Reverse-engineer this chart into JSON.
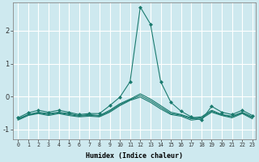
{
  "xlabel": "Humidex (Indice chaleur)",
  "bg_color": "#cee9ef",
  "grid_color": "#ffffff",
  "line_color": "#1a7a6e",
  "xlim": [
    -0.5,
    23.3
  ],
  "ylim": [
    -1.3,
    2.85
  ],
  "yticks": [
    -1,
    0,
    1,
    2
  ],
  "xticks": [
    0,
    1,
    2,
    3,
    4,
    5,
    6,
    7,
    8,
    9,
    10,
    11,
    12,
    13,
    14,
    15,
    16,
    17,
    18,
    19,
    20,
    21,
    22,
    23
  ],
  "series": [
    {
      "x": [
        0,
        1,
        2,
        3,
        4,
        5,
        6,
        7,
        8,
        9,
        10,
        11,
        12,
        13,
        14,
        15,
        16,
        17,
        18,
        19,
        20,
        21,
        22,
        23
      ],
      "y": [
        -0.65,
        -0.5,
        -0.42,
        -0.48,
        -0.42,
        -0.48,
        -0.55,
        -0.52,
        -0.52,
        -0.28,
        -0.02,
        0.45,
        2.72,
        2.2,
        0.45,
        -0.18,
        -0.45,
        -0.62,
        -0.72,
        -0.3,
        -0.48,
        -0.55,
        -0.42,
        -0.58
      ],
      "marker": "D",
      "markersize": 2.0
    },
    {
      "x": [
        0,
        1,
        2,
        3,
        4,
        5,
        6,
        7,
        8,
        9,
        10,
        11,
        12,
        13,
        14,
        15,
        16,
        17,
        18,
        19,
        20,
        21,
        22,
        23
      ],
      "y": [
        -0.68,
        -0.55,
        -0.48,
        -0.52,
        -0.48,
        -0.52,
        -0.58,
        -0.55,
        -0.58,
        -0.42,
        -0.22,
        -0.08,
        0.08,
        -0.08,
        -0.28,
        -0.48,
        -0.55,
        -0.65,
        -0.62,
        -0.42,
        -0.55,
        -0.6,
        -0.48,
        -0.62
      ],
      "marker": null
    },
    {
      "x": [
        0,
        1,
        2,
        3,
        4,
        5,
        6,
        7,
        8,
        9,
        10,
        11,
        12,
        13,
        14,
        15,
        16,
        17,
        18,
        19,
        20,
        21,
        22,
        23
      ],
      "y": [
        -0.72,
        -0.58,
        -0.52,
        -0.58,
        -0.52,
        -0.58,
        -0.62,
        -0.6,
        -0.62,
        -0.48,
        -0.28,
        -0.12,
        -0.02,
        -0.18,
        -0.38,
        -0.55,
        -0.6,
        -0.72,
        -0.68,
        -0.48,
        -0.58,
        -0.65,
        -0.52,
        -0.68
      ],
      "marker": null
    },
    {
      "x": [
        0,
        1,
        2,
        3,
        4,
        5,
        6,
        7,
        8,
        9,
        10,
        11,
        12,
        13,
        14,
        15,
        16,
        17,
        18,
        19,
        20,
        21,
        22,
        23
      ],
      "y": [
        -0.7,
        -0.56,
        -0.5,
        -0.55,
        -0.5,
        -0.55,
        -0.6,
        -0.57,
        -0.6,
        -0.45,
        -0.25,
        -0.1,
        0.03,
        -0.13,
        -0.33,
        -0.52,
        -0.57,
        -0.68,
        -0.65,
        -0.45,
        -0.56,
        -0.62,
        -0.5,
        -0.65
      ],
      "marker": null
    }
  ]
}
